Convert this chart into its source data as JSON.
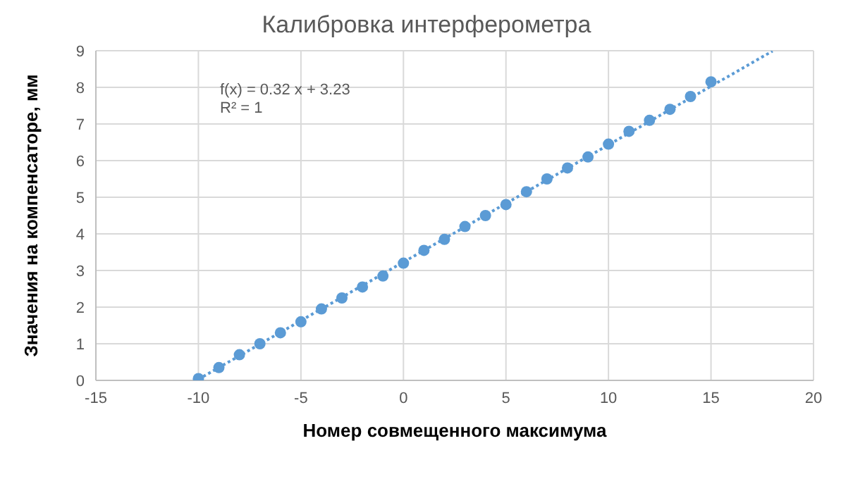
{
  "chart_data": {
    "type": "scatter",
    "title": "Калибровка интерферометра",
    "xlabel": "Номер совмещенного максимума",
    "ylabel": "Значения на компенсаторе, мм",
    "x": [
      -10,
      -9,
      -8,
      -7,
      -6,
      -5,
      -4,
      -3,
      -2,
      -1,
      0,
      1,
      2,
      3,
      4,
      5,
      6,
      7,
      8,
      9,
      10,
      11,
      12,
      13,
      14,
      15
    ],
    "series": [
      {
        "color": "#5b9bd5",
        "marker": "circle",
        "values": [
          0.05,
          0.35,
          0.7,
          1.0,
          1.3,
          1.6,
          1.95,
          2.25,
          2.55,
          2.85,
          3.2,
          3.55,
          3.85,
          4.2,
          4.5,
          4.8,
          5.15,
          5.5,
          5.8,
          6.1,
          6.45,
          6.8,
          7.1,
          7.4,
          7.75,
          8.15
        ]
      },
      {
        "type": "line",
        "color": "#5b9bd5",
        "line_style": "dotted",
        "marker": "none",
        "x": [
          -10,
          18
        ],
        "values": [
          0.03,
          8.99
        ]
      }
    ],
    "annotations": [
      "f(x) = 0.32 x + 3.23",
      "R² = 1"
    ],
    "xlim": [
      -15,
      20
    ],
    "xticks": [
      -15,
      -10,
      -5,
      0,
      5,
      10,
      15,
      20
    ],
    "ylim": [
      0,
      9
    ],
    "yticks": [
      0,
      1,
      2,
      3,
      4,
      5,
      6,
      7,
      8,
      9
    ],
    "grid": true,
    "legend": false
  }
}
